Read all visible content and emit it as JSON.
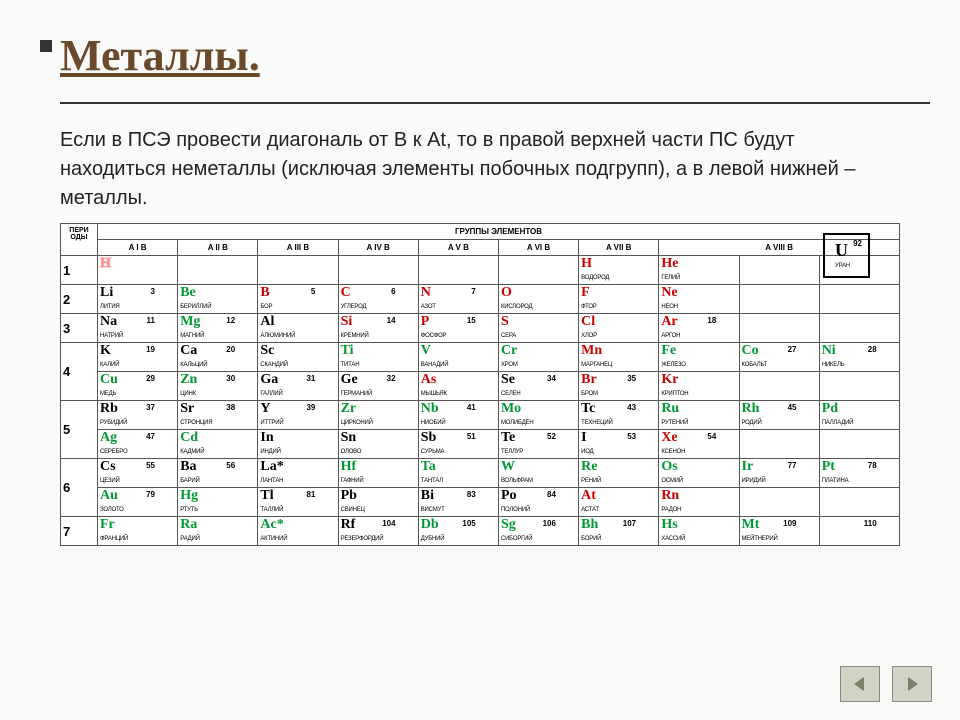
{
  "title": "Металлы.",
  "description": "Если в ПСЭ провести диагональ от B к At, то в правой верхней части ПС будут находиться неметаллы (исключая элементы побочных подгрупп), а в левой нижней – металлы.",
  "header_periods": "ПЕРИ ОДЫ",
  "header_groups": "ГРУППЫ ЭЛЕМЕНТОВ",
  "group_labels": [
    "A I B",
    "A II B",
    "A III B",
    "A IV B",
    "A V B",
    "A VI B",
    "A VII B",
    "A     VIII     B"
  ],
  "legend": {
    "sym": "U",
    "num": "92",
    "name": "УРАН"
  },
  "rows": [
    {
      "period": "1",
      "cells": [
        {
          "sym": "H",
          "num": "",
          "name": "",
          "cls": "red",
          "outline": true
        },
        null,
        null,
        null,
        null,
        null,
        {
          "sym": "H",
          "num": "",
          "name": "ВОДОРОД",
          "cls": "red"
        },
        {
          "sym": "He",
          "num": "",
          "name": "ГЕЛИЙ",
          "cls": "red"
        },
        null,
        null
      ]
    },
    {
      "period": "2",
      "cells": [
        {
          "sym": "Li",
          "num": "3",
          "name": "ЛИТИЯ",
          "cls": "black"
        },
        {
          "sym": "Be",
          "num": "",
          "name": "БЕРИЛЛИЙ",
          "cls": "green"
        },
        {
          "sym": "B",
          "num": "5",
          "name": "БОР",
          "cls": "red"
        },
        {
          "sym": "C",
          "num": "6",
          "name": "УГЛЕРОД",
          "cls": "red"
        },
        {
          "sym": "N",
          "num": "7",
          "name": "АЗОТ",
          "cls": "red"
        },
        {
          "sym": "O",
          "num": "",
          "name": "КИСЛОРОД",
          "cls": "red"
        },
        {
          "sym": "F",
          "num": "",
          "name": "ФТОР",
          "cls": "red"
        },
        {
          "sym": "Ne",
          "num": "",
          "name": "НЕОН",
          "cls": "red"
        },
        null,
        null
      ]
    },
    {
      "period": "3",
      "cells": [
        {
          "sym": "Na",
          "num": "11",
          "name": "НАТРИЙ",
          "cls": "black"
        },
        {
          "sym": "Mg",
          "num": "12",
          "name": "МАГНИЙ",
          "cls": "green"
        },
        {
          "sym": "Al",
          "num": "",
          "name": "АЛЮМИНИЙ",
          "cls": "black"
        },
        {
          "sym": "Si",
          "num": "14",
          "name": "КРЕМНИЙ",
          "cls": "red"
        },
        {
          "sym": "P",
          "num": "15",
          "name": "ФОСФОР",
          "cls": "red"
        },
        {
          "sym": "S",
          "num": "",
          "name": "СЕРА",
          "cls": "red"
        },
        {
          "sym": "Cl",
          "num": "",
          "name": "ХЛОР",
          "cls": "red"
        },
        {
          "sym": "Ar",
          "num": "18",
          "name": "АРГОН",
          "cls": "red"
        },
        null,
        null
      ]
    },
    {
      "period": "4",
      "tall": true,
      "cells": [
        [
          {
            "sym": "K",
            "num": "19",
            "name": "КАЛИЙ",
            "cls": "black"
          },
          {
            "sym": "Cu",
            "num": "29",
            "name": "МЕДЬ",
            "cls": "green"
          }
        ],
        [
          {
            "sym": "Ca",
            "num": "20",
            "name": "КАЛЬЦИЙ",
            "cls": "black"
          },
          {
            "sym": "Zn",
            "num": "30",
            "name": "ЦИНК",
            "cls": "green"
          }
        ],
        [
          {
            "sym": "Sc",
            "num": "",
            "name": "СКАНДИЙ",
            "cls": "black"
          },
          {
            "sym": "Ga",
            "num": "31",
            "name": "ГАЛЛИЙ",
            "cls": "black"
          }
        ],
        [
          {
            "sym": "Ti",
            "num": "",
            "name": "ТИТАН",
            "cls": "green"
          },
          {
            "sym": "Ge",
            "num": "32",
            "name": "ГЕРМАНИЙ",
            "cls": "black"
          }
        ],
        [
          {
            "sym": "V",
            "num": "",
            "name": "ВАНАДИЙ",
            "cls": "green"
          },
          {
            "sym": "As",
            "num": "",
            "name": "МЫШЬЯК",
            "cls": "red"
          }
        ],
        [
          {
            "sym": "Cr",
            "num": "",
            "name": "ХРОМ",
            "cls": "green"
          },
          {
            "sym": "Se",
            "num": "34",
            "name": "СЕЛЕН",
            "cls": "black"
          }
        ],
        [
          {
            "sym": "Mn",
            "num": "",
            "name": "МАРГАНЕЦ",
            "cls": "red"
          },
          {
            "sym": "Br",
            "num": "35",
            "name": "БРОМ",
            "cls": "red"
          }
        ],
        [
          {
            "sym": "Fe",
            "num": "",
            "name": "ЖЕЛЕЗО",
            "cls": "green"
          },
          {
            "sym": "Kr",
            "num": "",
            "name": "КРИПТОН",
            "cls": "red"
          }
        ],
        [
          {
            "sym": "Co",
            "num": "27",
            "name": "КОБАЛЬТ",
            "cls": "green"
          },
          null
        ],
        [
          {
            "sym": "Ni",
            "num": "28",
            "name": "НИКЕЛЬ",
            "cls": "green"
          },
          null
        ]
      ]
    },
    {
      "period": "5",
      "tall": true,
      "cells": [
        [
          {
            "sym": "Rb",
            "num": "37",
            "name": "РУБИДИЙ",
            "cls": "black"
          },
          {
            "sym": "Ag",
            "num": "47",
            "name": "СЕРЕБРО",
            "cls": "green"
          }
        ],
        [
          {
            "sym": "Sr",
            "num": "38",
            "name": "СТРОНЦИЯ",
            "cls": "black"
          },
          {
            "sym": "Cd",
            "num": "",
            "name": "КАДМИЙ",
            "cls": "green"
          }
        ],
        [
          {
            "sym": "Y",
            "num": "39",
            "name": "ИТТРИЙ",
            "cls": "black"
          },
          {
            "sym": "In",
            "num": "",
            "name": "ИНДИЙ",
            "cls": "black"
          }
        ],
        [
          {
            "sym": "Zr",
            "num": "",
            "name": "ЦИРКОНИЙ",
            "cls": "green"
          },
          {
            "sym": "Sn",
            "num": "",
            "name": "ОЛОВО",
            "cls": "black"
          }
        ],
        [
          {
            "sym": "Nb",
            "num": "41",
            "name": "НИОБИЙ",
            "cls": "green"
          },
          {
            "sym": "Sb",
            "num": "51",
            "name": "СУРЬМА",
            "cls": "black"
          }
        ],
        [
          {
            "sym": "Mo",
            "num": "",
            "name": "МОЛИБДЕН",
            "cls": "green"
          },
          {
            "sym": "Te",
            "num": "52",
            "name": "ТЕЛЛУР",
            "cls": "black"
          }
        ],
        [
          {
            "sym": "Tc",
            "num": "43",
            "name": "ТЕХНЕЦИЙ",
            "cls": "black"
          },
          {
            "sym": "I",
            "num": "53",
            "name": "ИОД",
            "cls": "black"
          }
        ],
        [
          {
            "sym": "Ru",
            "num": "",
            "name": "РУТЕНИЙ",
            "cls": "green"
          },
          {
            "sym": "Xe",
            "num": "54",
            "name": "КСЕНОН",
            "cls": "red"
          }
        ],
        [
          {
            "sym": "Rh",
            "num": "45",
            "name": "РОДИЙ",
            "cls": "green"
          },
          null
        ],
        [
          {
            "sym": "Pd",
            "num": "",
            "name": "ПАЛЛАДИЙ",
            "cls": "green"
          },
          null
        ]
      ]
    },
    {
      "period": "6",
      "tall": true,
      "cells": [
        [
          {
            "sym": "Cs",
            "num": "55",
            "name": "ЦЕЗИЙ",
            "cls": "black"
          },
          {
            "sym": "Au",
            "num": "79",
            "name": "ЗОЛОТО",
            "cls": "green"
          }
        ],
        [
          {
            "sym": "Ba",
            "num": "56",
            "name": "БАРИЙ",
            "cls": "black"
          },
          {
            "sym": "Hg",
            "num": "",
            "name": "РТУТЬ",
            "cls": "green"
          }
        ],
        [
          {
            "sym": "La*",
            "num": "",
            "name": "ЛАНТАН",
            "cls": "black"
          },
          {
            "sym": "Tl",
            "num": "81",
            "name": "ТАЛЛИЙ",
            "cls": "black"
          }
        ],
        [
          {
            "sym": "Hf",
            "num": "",
            "name": "ГАФНИЙ",
            "cls": "green"
          },
          {
            "sym": "Pb",
            "num": "",
            "name": "СВИНЕЦ",
            "cls": "black"
          }
        ],
        [
          {
            "sym": "Ta",
            "num": "",
            "name": "ТАНТАЛ",
            "cls": "green"
          },
          {
            "sym": "Bi",
            "num": "83",
            "name": "ВИСМУТ",
            "cls": "black"
          }
        ],
        [
          {
            "sym": "W",
            "num": "",
            "name": "ВОЛЬФРАМ",
            "cls": "green"
          },
          {
            "sym": "Po",
            "num": "84",
            "name": "ПОЛОНИЙ",
            "cls": "black"
          }
        ],
        [
          {
            "sym": "Re",
            "num": "",
            "name": "РЕНИЙ",
            "cls": "green"
          },
          {
            "sym": "At",
            "num": "",
            "name": "АСТАТ",
            "cls": "red"
          }
        ],
        [
          {
            "sym": "Os",
            "num": "",
            "name": "ОСМИЙ",
            "cls": "green"
          },
          {
            "sym": "Rn",
            "num": "",
            "name": "РАДОН",
            "cls": "red"
          }
        ],
        [
          {
            "sym": "Ir",
            "num": "77",
            "name": "ИРИДИЙ",
            "cls": "green"
          },
          null
        ],
        [
          {
            "sym": "Pt",
            "num": "78",
            "name": "ПЛАТИНА",
            "cls": "green"
          },
          null
        ]
      ]
    },
    {
      "period": "7",
      "cells": [
        {
          "sym": "Fr",
          "num": "",
          "name": "ФРАНЦИЙ",
          "cls": "green"
        },
        {
          "sym": "Ra",
          "num": "",
          "name": "РАДИЙ",
          "cls": "green"
        },
        {
          "sym": "Ac*",
          "num": "",
          "name": "АКТИНИЙ",
          "cls": "green"
        },
        {
          "sym": "Rf",
          "num": "104",
          "name": "РЕЗЕРФОРДИЙ",
          "cls": "black"
        },
        {
          "sym": "Db",
          "num": "105",
          "name": "ДУБНИЙ",
          "cls": "green"
        },
        {
          "sym": "Sg",
          "num": "106",
          "name": "СИБОРГИЙ",
          "cls": "green"
        },
        {
          "sym": "Bh",
          "num": "107",
          "name": "БОРИЙ",
          "cls": "green"
        },
        {
          "sym": "Hs",
          "num": "",
          "name": "ХАССИЙ",
          "cls": "green"
        },
        {
          "sym": "Mt",
          "num": "109",
          "name": "МЕЙТНЕРИЙ",
          "cls": "green"
        },
        {
          "sym": "",
          "num": "110",
          "name": "",
          "cls": "black"
        }
      ]
    }
  ]
}
